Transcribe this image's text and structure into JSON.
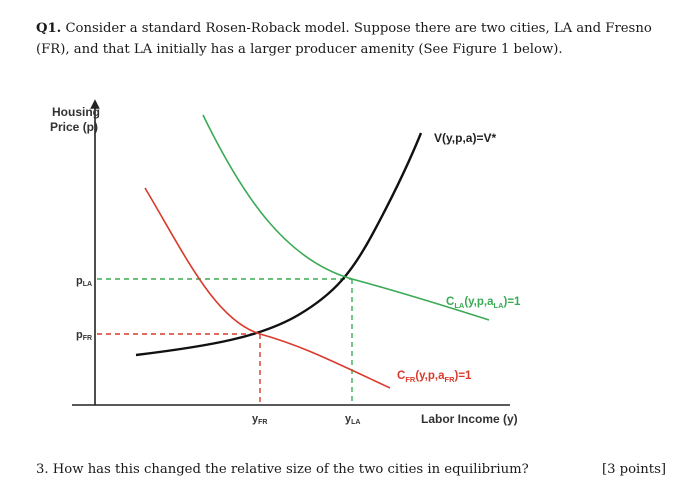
{
  "question": {
    "number": "Q1.",
    "text": "Consider a standard Rosen-Roback model. Suppose there are two cities, LA and Fresno (FR), and that LA initially has a larger producer amenity (See Figure 1 below)."
  },
  "figure": {
    "y_axis_label_line1": "Housing",
    "y_axis_label_line2": "Price (p)",
    "x_axis_label": "Labor Income (y)",
    "tick_p_la": {
      "main": "p",
      "sub": "LA"
    },
    "tick_p_fr": {
      "main": "p",
      "sub": "FR"
    },
    "tick_y_fr": {
      "main": "y",
      "sub": "FR"
    },
    "tick_y_la": {
      "main": "y",
      "sub": "LA"
    },
    "curve_v_label": "V(y,p,a)=V*",
    "curve_cla_label": {
      "pre": "C",
      "sub1": "LA",
      "mid": "(y,p,a",
      "sub2": "LA",
      "post": ")=1"
    },
    "curve_cfr_label": {
      "pre": "C",
      "sub1": "FR",
      "mid": "(y,p,a",
      "sub2": "FR",
      "post": ")=1"
    },
    "colors": {
      "v_curve": "#111111",
      "cla_curve": "#3aaa55",
      "cfr_curve": "#d93a2b",
      "axis": "#222222"
    }
  },
  "subquestion": {
    "text": "3. How has this changed the relative size of the two cities in equilibrium?",
    "points": "[3 points]"
  }
}
